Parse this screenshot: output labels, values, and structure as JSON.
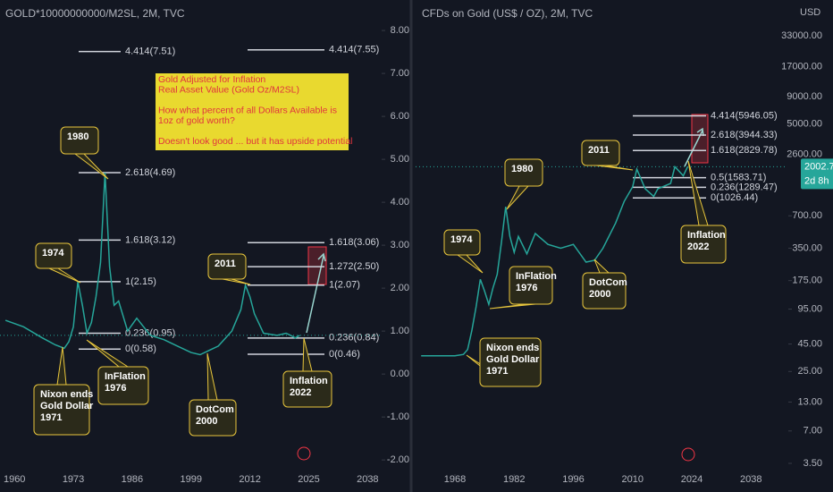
{
  "chart_data": [
    {
      "type": "line",
      "title": "GOLD*10000000000/M2SL, 2M, TVC",
      "x": [
        1958,
        1962,
        1966,
        1969,
        1971,
        1972,
        1973,
        1974,
        1975,
        1976,
        1977,
        1978,
        1979,
        1980,
        1981,
        1982,
        1983,
        1985,
        1987,
        1990,
        1993,
        1996,
        1999,
        2001,
        2003,
        2005,
        2008,
        2010,
        2011,
        2012,
        2013,
        2015,
        2018,
        2020,
        2021,
        2022,
        2023
      ],
      "series": [
        {
          "name": "GOLD*10000000000/M2SL",
          "color": "#26a69a",
          "values": [
            1.25,
            1.1,
            0.85,
            0.68,
            0.6,
            0.75,
            1.1,
            2.15,
            1.6,
            0.95,
            1.2,
            1.8,
            2.6,
            4.69,
            2.5,
            1.6,
            1.7,
            1.0,
            1.3,
            0.9,
            0.8,
            0.65,
            0.5,
            0.45,
            0.55,
            0.65,
            1.0,
            1.5,
            2.07,
            1.8,
            1.4,
            0.95,
            0.9,
            0.95,
            0.9,
            0.84,
            0.9
          ]
        }
      ],
      "xlim": [
        1956.8,
        2040.7
      ],
      "xticks": [
        1960,
        1973,
        1986,
        1999,
        2012,
        2025,
        2038
      ],
      "ylim": [
        -2.33,
        8.71
      ],
      "yticks": [
        {
          "value": -2,
          "label": "-2.00"
        },
        {
          "value": -1,
          "label": "-1.00"
        },
        {
          "value": 0,
          "label": "0.00"
        },
        {
          "value": 1,
          "label": "1.00"
        },
        {
          "value": 2,
          "label": "2.00"
        },
        {
          "value": 3,
          "label": "3.00"
        },
        {
          "value": 4,
          "label": "4.00"
        },
        {
          "value": 5,
          "label": "5.00"
        },
        {
          "value": 6,
          "label": "6.00"
        },
        {
          "value": 7,
          "label": "7.00"
        },
        {
          "value": 8,
          "label": "8.00"
        }
      ],
      "log_scale": false,
      "fib_levels": [
        [
          {
            "value": 7.51,
            "label": "4.414(7.51)"
          },
          {
            "value": 4.69,
            "label": "2.618(4.69)"
          },
          {
            "value": 3.12,
            "label": "1.618(3.12)"
          },
          {
            "value": 2.15,
            "label": "1(2.15)"
          },
          {
            "value": 0.95,
            "label": "0.236(0.95)"
          },
          {
            "value": 0.58,
            "label": "0(0.58)"
          }
        ],
        [
          {
            "value": 7.55,
            "label": "4.414(7.55)"
          },
          {
            "value": 3.06,
            "label": "1.618(3.06)"
          },
          {
            "value": 2.5,
            "label": "1.272(2.50)"
          },
          {
            "value": 2.07,
            "label": "1(2.07)"
          },
          {
            "value": 0.84,
            "label": "0.236(0.84)"
          },
          {
            "value": 0.46,
            "label": "0(0.46)"
          }
        ]
      ],
      "callouts": [
        [
          "1980"
        ],
        [
          "1974"
        ],
        [
          "2011"
        ],
        [
          "Nixon ends",
          "Gold Dollar",
          "1971"
        ],
        [
          "InFlation",
          "1976"
        ],
        [
          "DotCom",
          "2000"
        ],
        [
          "Inflation",
          "2022"
        ]
      ],
      "note": [
        [
          "Gold Adjusted for Inflation",
          "Real Asset Value (Gold Oz/M2SL)"
        ],
        [
          "How what percent of all Dollars Available is",
          "1oz of gold worth?"
        ],
        [
          "Doesn't look good ... but it has upside potential"
        ]
      ]
    },
    {
      "type": "line",
      "title": "CFDs on Gold (US$ / OZ), 2M, TVC",
      "currency": "USD",
      "x": [
        1960,
        1964,
        1968,
        1970,
        1971,
        1972,
        1973,
        1974,
        1975,
        1976,
        1977,
        1978,
        1979,
        1980,
        1981,
        1982,
        1983,
        1985,
        1987,
        1990,
        1993,
        1996,
        1999,
        2001,
        2003,
        2006,
        2008,
        2010,
        2011,
        2013,
        2015,
        2016,
        2019,
        2020,
        2022,
        2023
      ],
      "series": [
        {
          "name": "CFDs on Gold (US$ / OZ)",
          "color": "#26a69a",
          "values": [
            35,
            35,
            35,
            36,
            40,
            60,
            100,
            180,
            140,
            105,
            150,
            200,
            400,
            850,
            450,
            320,
            450,
            310,
            480,
            380,
            350,
            380,
            260,
            270,
            350,
            600,
            950,
            1300,
            1900,
            1250,
            1060,
            1250,
            1400,
            2000,
            1650,
            2002.72
          ]
        }
      ],
      "price_label": "2002.72",
      "countdown": "2d 8h",
      "xlim": [
        1958.7,
        2046.4
      ],
      "xticks": [
        1968,
        1982,
        1996,
        2010,
        2024,
        2038
      ],
      "ylim": [
        2.78,
        71000
      ],
      "yticks": [
        {
          "value": 3.5,
          "label": "3.50"
        },
        {
          "value": 7,
          "label": "7.00"
        },
        {
          "value": 13,
          "label": "13.00"
        },
        {
          "value": 25,
          "label": "25.00"
        },
        {
          "value": 45,
          "label": "45.00"
        },
        {
          "value": 95,
          "label": "95.00"
        },
        {
          "value": 175,
          "label": "175.00"
        },
        {
          "value": 350,
          "label": "350.00"
        },
        {
          "value": 700,
          "label": "700.00"
        },
        {
          "value": 2600,
          "label": "2600.00"
        },
        {
          "value": 5000,
          "label": "5000.00"
        },
        {
          "value": 9000,
          "label": "9000.00"
        },
        {
          "value": 17000,
          "label": "17000.00"
        },
        {
          "value": 33000,
          "label": "33000.00"
        }
      ],
      "log_scale": true,
      "fib_levels": [
        [
          {
            "value": 5946.05,
            "label": "4.414(5946.05)"
          },
          {
            "value": 3944.33,
            "label": "2.618(3944.33)"
          },
          {
            "value": 2829.78,
            "label": "1.618(2829.78)"
          },
          {
            "value": 1583.71,
            "label": "0.5(1583.71)"
          },
          {
            "value": 1289.47,
            "label": "0.236(1289.47)"
          },
          {
            "value": 1026.44,
            "label": "0(1026.44)"
          }
        ]
      ],
      "callouts": [
        [
          "1980"
        ],
        [
          "1974"
        ],
        [
          "2011"
        ],
        [
          "Nixon ends",
          "Gold Dollar",
          "1971"
        ],
        [
          "InFlation",
          "1976"
        ],
        [
          "DotCom",
          "2000"
        ],
        [
          "Inflation",
          "2022"
        ]
      ]
    }
  ]
}
